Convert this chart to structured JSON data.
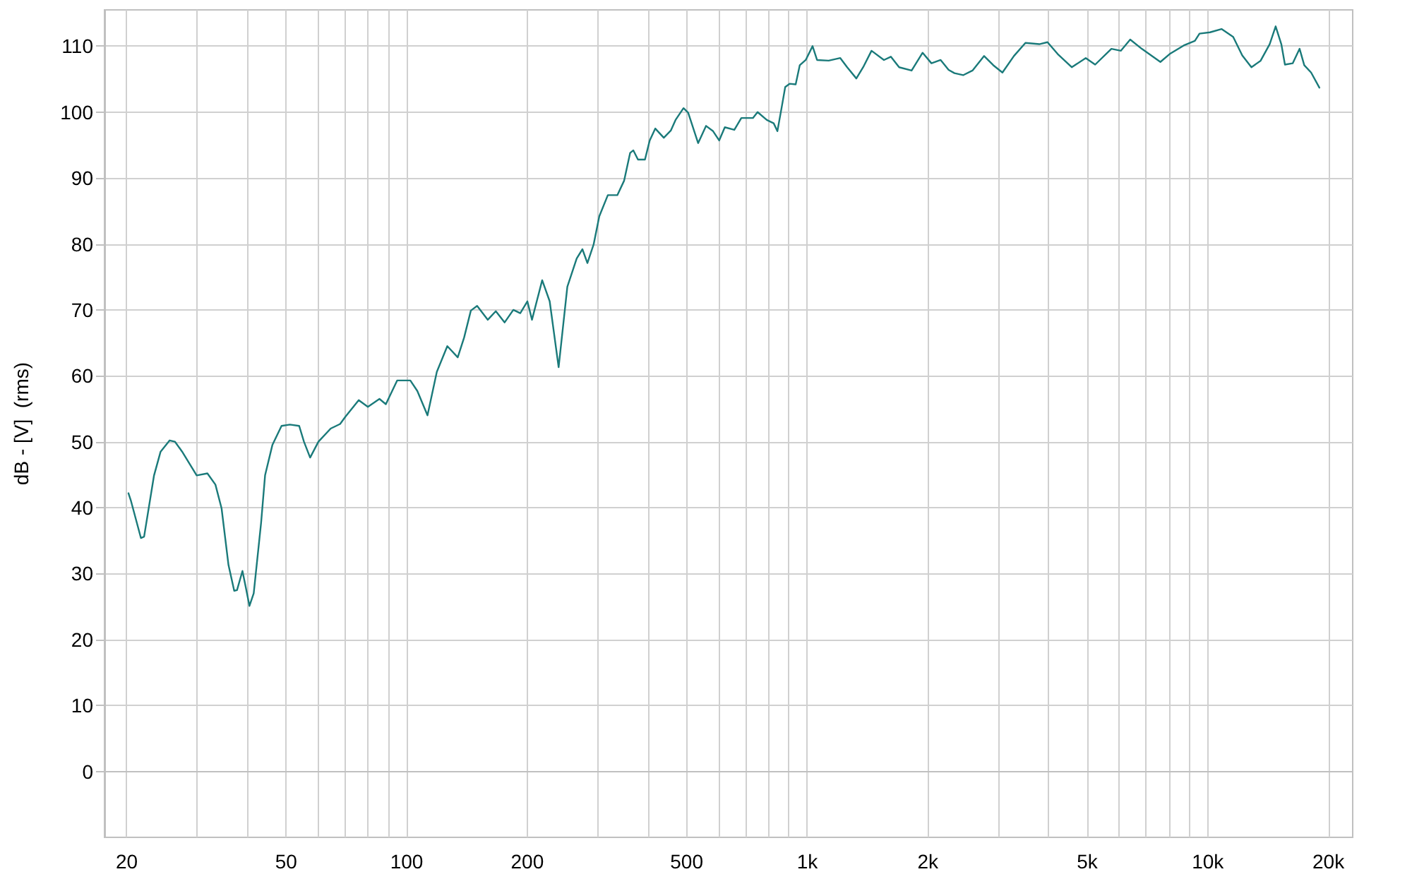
{
  "chart_data": {
    "type": "line",
    "ylabel": "dB - [V]  (rms)",
    "log": "x",
    "grid": true,
    "marker": "none",
    "line_style": "solid",
    "xlim": [
      17.6,
      23000
    ],
    "ylim": [
      -10,
      115.5
    ],
    "xticks": [
      20,
      {
        "value": 30,
        "label": null
      },
      {
        "value": 40,
        "label": null
      },
      50,
      {
        "value": 60,
        "label": null
      },
      {
        "value": 70,
        "label": null
      },
      {
        "value": 80,
        "label": null
      },
      {
        "value": 90,
        "label": null
      },
      100,
      200,
      {
        "value": 300,
        "label": null
      },
      {
        "value": 400,
        "label": null
      },
      500,
      {
        "value": 600,
        "label": null
      },
      {
        "value": 700,
        "label": null
      },
      {
        "value": 800,
        "label": null
      },
      {
        "value": 900,
        "label": null
      },
      {
        "value": 1000,
        "label": "1k"
      },
      {
        "value": 2000,
        "label": "2k"
      },
      {
        "value": 3000,
        "label": null
      },
      {
        "value": 4000,
        "label": null
      },
      {
        "value": 5000,
        "label": "5k"
      },
      {
        "value": 6000,
        "label": null
      },
      {
        "value": 7000,
        "label": null
      },
      {
        "value": 8000,
        "label": null
      },
      {
        "value": 9000,
        "label": null
      },
      {
        "value": 10000,
        "label": "10k"
      },
      {
        "value": 20000,
        "label": "20k"
      }
    ],
    "yticks": [
      0,
      10,
      20,
      30,
      40,
      50,
      60,
      70,
      80,
      90,
      100,
      110
    ],
    "series": [
      {
        "color": "#1a7a7a",
        "x": [
          20.2,
          20.5,
          21.7,
          22.1,
          23.4,
          24.3,
          25.6,
          26.4,
          27.5,
          29.9,
          31.8,
          33.3,
          34.5,
          35.9,
          37.1,
          37.7,
          38.9,
          39.6,
          40.5,
          41.5,
          43.3,
          44.3,
          46.2,
          48.7,
          51.1,
          53.9,
          55.4,
          57.4,
          60.2,
          64.6,
          68.2,
          70.3,
          75.9,
          80,
          85.5,
          88.7,
          94.7,
          102.1,
          106.3,
          112.7,
          118.9,
          126.3,
          134.1,
          139.1,
          144.6,
          149.9,
          159.4,
          166.9,
          175.6,
          184.6,
          192.1,
          200.1,
          205.5,
          217.9,
          227.5,
          239.5,
          251.8,
          265.7,
          274.6,
          282.6,
          292.8,
          302.6,
          317.8,
          335.6,
          349,
          361.2,
          368,
          377.9,
          393.4,
          404.3,
          417.5,
          438.4,
          456.4,
          469,
          491,
          504.3,
          534,
          559,
          582,
          602.7,
          622.6,
          657.6,
          684.6,
          731.7,
          751.6,
          792.5,
          824.5,
          842.3,
          862.6,
          881,
          904.5,
          935.6,
          957.8,
          991.3,
          1031,
          1058,
          1131,
          1209,
          1258,
          1326,
          1379,
          1447,
          1554,
          1617,
          1696,
          1822,
          1941,
          2042,
          2153,
          2254,
          2331,
          2450,
          2585,
          2764,
          2915,
          3071,
          3280,
          3505,
          3796,
          3979,
          4220,
          4574,
          4958,
          5233,
          5746,
          6064,
          6401,
          6840,
          7614,
          8029,
          8705,
          9283,
          9534,
          10130,
          10820,
          11570,
          12190,
          12850,
          13550,
          14270,
          14770,
          15260,
          15580,
          16290,
          16950,
          17410,
          18110,
          18990
        ],
        "values": [
          42.2,
          41,
          35.4,
          35.6,
          44.9,
          48.5,
          50.2,
          50,
          48.5,
          44.9,
          45.2,
          43.5,
          39.9,
          31.3,
          27.4,
          27.5,
          30.4,
          28.1,
          25.1,
          27,
          37.7,
          44.9,
          49.5,
          52.4,
          52.6,
          52.4,
          50,
          47.6,
          50,
          52,
          52.7,
          53.8,
          56.3,
          55.3,
          56.5,
          55.7,
          59.3,
          59.3,
          57.7,
          54,
          60.6,
          64.5,
          62.8,
          65.8,
          69.9,
          70.6,
          68.5,
          69.8,
          68.1,
          70,
          69.5,
          71.3,
          68.5,
          74.5,
          71.3,
          61.3,
          73.5,
          77.8,
          79.2,
          77.1,
          79.9,
          84.2,
          87.4,
          87.4,
          89.6,
          93.8,
          94.2,
          92.8,
          92.8,
          95.7,
          97.5,
          96.1,
          97.2,
          98.8,
          100.6,
          99.9,
          95.3,
          97.9,
          97.1,
          95.7,
          97.7,
          97.3,
          99.1,
          99.1,
          100,
          98.8,
          98.3,
          97.1,
          100.6,
          103.8,
          104.3,
          104.2,
          107.1,
          107.9,
          110,
          107.9,
          107.8,
          108.2,
          106.8,
          105.1,
          106.8,
          109.3,
          107.9,
          108.4,
          106.8,
          106.3,
          109,
          107.4,
          107.9,
          106.4,
          105.9,
          105.6,
          106.3,
          108.5,
          107.1,
          106,
          108.5,
          110.5,
          110.3,
          110.6,
          108.8,
          106.8,
          108.2,
          107.2,
          109.6,
          109.3,
          111,
          109.6,
          107.6,
          108.8,
          110.1,
          110.8,
          111.9,
          112.1,
          112.6,
          111.4,
          108.6,
          106.8,
          107.8,
          110.3,
          113,
          110.3,
          107.2,
          107.4,
          109.6,
          107.1,
          106,
          103.7
        ]
      }
    ]
  }
}
